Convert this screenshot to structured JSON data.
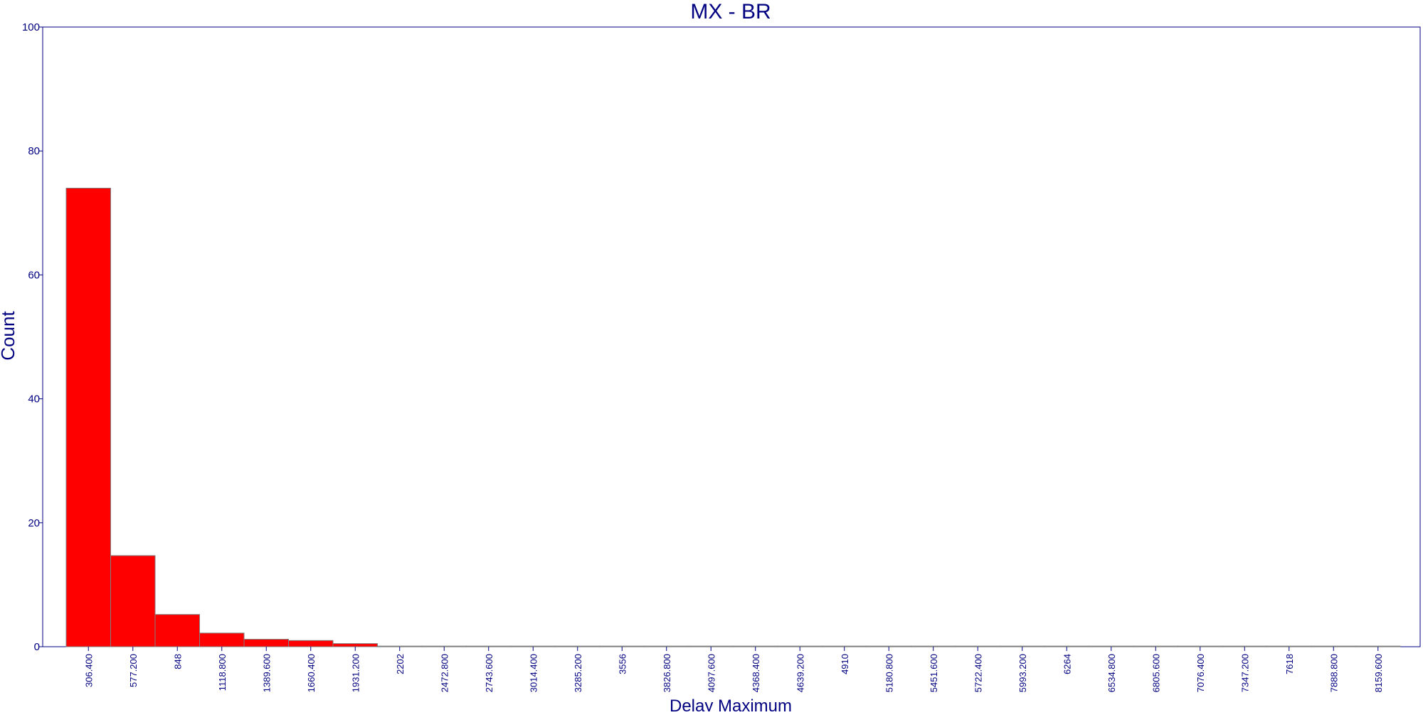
{
  "chart_data": {
    "type": "bar",
    "title": "MX - BR",
    "xlabel": "Delay Maximum",
    "ylabel": "Count",
    "ylim": [
      0,
      100
    ],
    "yticks": [
      0,
      20,
      40,
      60,
      80,
      100
    ],
    "grid": false,
    "categories": [
      "306.400",
      "577.200",
      "848",
      "1118.800",
      "1389.600",
      "1660.400",
      "1931.200",
      "2202",
      "2472.800",
      "2743.600",
      "3014.400",
      "3285.200",
      "3556",
      "3826.800",
      "4097.600",
      "4368.400",
      "4639.200",
      "4910",
      "5180.800",
      "5451.600",
      "5722.400",
      "5993.200",
      "6264",
      "6534.800",
      "6805.600",
      "7076.400",
      "7347.200",
      "7618",
      "7888.800",
      "8159.600"
    ],
    "values": [
      74,
      14.7,
      5.2,
      2.2,
      1.2,
      1.0,
      0.5,
      0.1,
      0.1,
      0.1,
      0.1,
      0.1,
      0.1,
      0.1,
      0.1,
      0.1,
      0.1,
      0.1,
      0.1,
      0.1,
      0.1,
      0.1,
      0.1,
      0.1,
      0.1,
      0.1,
      0.1,
      0.1,
      0.1,
      0.1
    ],
    "colors": {
      "bar": "#ff0000",
      "bar_edge": "#7f7f7f",
      "axis": "#000080",
      "text": "#000080"
    }
  }
}
